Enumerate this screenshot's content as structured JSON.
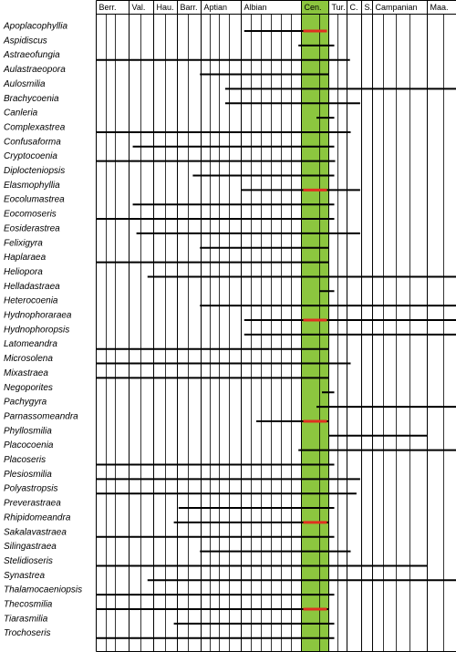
{
  "chart_data": {
    "type": "range-chart",
    "title": "",
    "xlabel": "",
    "ylabel": "",
    "stages": [
      "Berr.",
      "Val.",
      "Hau.",
      "Barr.",
      "Aptian",
      "Albian",
      "Cen.",
      "Tur.",
      "C.",
      "S.",
      "Campanian",
      "Maa."
    ],
    "highlighted_stage": "Cen.",
    "colors": {
      "highlight_band": "#8cc63f",
      "range_bar": "#000000",
      "marker": "#e03020",
      "grid": "#000000"
    },
    "taxa": [
      {
        "name": "Apoplacophyllia",
        "start": 5.05,
        "end": 6.6,
        "marker": true
      },
      {
        "name": "Aspidiscus",
        "start": 5.95,
        "end": 7.3,
        "marker": false
      },
      {
        "name": "Astraeofungia",
        "start": 0,
        "end": 8.2,
        "marker": false
      },
      {
        "name": "Aulastraeopora",
        "start": 3.95,
        "end": 7.0,
        "marker": false
      },
      {
        "name": "Aulosmilia",
        "start": 4.6,
        "end": 12.0,
        "marker": false
      },
      {
        "name": "Brachycoenia",
        "start": 4.6,
        "end": 8.9,
        "marker": false
      },
      {
        "name": "Canleria",
        "start": 6.55,
        "end": 7.3,
        "marker": false
      },
      {
        "name": "Complexastrea",
        "start": 0,
        "end": 8.25,
        "marker": false
      },
      {
        "name": "Confusaforma",
        "start": 1.15,
        "end": 7.3,
        "marker": false
      },
      {
        "name": "Cryptocoenia",
        "start": 0,
        "end": 7.35,
        "marker": false
      },
      {
        "name": "Diplocteniopsis",
        "start": 3.65,
        "end": 7.3,
        "marker": false
      },
      {
        "name": "Elasmophyllia",
        "start": 5.0,
        "end": 8.9,
        "marker": true
      },
      {
        "name": "Eocolumastrea",
        "start": 1.15,
        "end": 7.3,
        "marker": false
      },
      {
        "name": "Eocomoseris",
        "start": 0,
        "end": 7.3,
        "marker": false
      },
      {
        "name": "Eosiderastrea",
        "start": 1.3,
        "end": 8.9,
        "marker": false
      },
      {
        "name": "Felixigyra",
        "start": 3.95,
        "end": 7.0,
        "marker": false
      },
      {
        "name": "Haplaraea",
        "start": 0,
        "end": 7.0,
        "marker": false
      },
      {
        "name": "Heliopora",
        "start": 1.75,
        "end": 12.0,
        "marker": false
      },
      {
        "name": "Helladastraea",
        "start": 6.65,
        "end": 7.3,
        "marker": false
      },
      {
        "name": "Heterocoenia",
        "start": 3.95,
        "end": 12.0,
        "marker": false
      },
      {
        "name": "Hydnophoraraea",
        "start": 5.05,
        "end": 12.0,
        "marker": true
      },
      {
        "name": "Hydnophoropsis",
        "start": 5.05,
        "end": 12.0,
        "marker": false
      },
      {
        "name": "Latomeandra",
        "start": 0,
        "end": 7.0,
        "marker": false
      },
      {
        "name": "Microsolena",
        "start": 0,
        "end": 8.25,
        "marker": false
      },
      {
        "name": "Mixastraea",
        "start": 0,
        "end": 7.0,
        "marker": false
      },
      {
        "name": "Negoporites",
        "start": 6.75,
        "end": 7.3,
        "marker": false
      },
      {
        "name": "Pachygyra",
        "start": 6.55,
        "end": 12.0,
        "marker": false
      },
      {
        "name": "Parnassomeandra",
        "start": 5.25,
        "end": 7.0,
        "marker": true
      },
      {
        "name": "Phyllosmilia",
        "start": 7.0,
        "end": 11.0,
        "marker": false
      },
      {
        "name": "Placocoenia",
        "start": 5.95,
        "end": 12.0,
        "marker": false
      },
      {
        "name": "Placoseris",
        "start": 0,
        "end": 7.3,
        "marker": false
      },
      {
        "name": "Plesiosmilia",
        "start": 0,
        "end": 8.9,
        "marker": false
      },
      {
        "name": "Polyastropsis",
        "start": 0,
        "end": 8.65,
        "marker": false
      },
      {
        "name": "Preverastraea",
        "start": 3.05,
        "end": 7.3,
        "marker": false
      },
      {
        "name": "Rhipidomeandra",
        "start": 2.85,
        "end": 7.0,
        "marker": true
      },
      {
        "name": "Sakalavastraea",
        "start": 0,
        "end": 7.3,
        "marker": false
      },
      {
        "name": "Silingastraea",
        "start": 3.95,
        "end": 8.25,
        "marker": false
      },
      {
        "name": "Stelidioseris",
        "start": 0,
        "end": 11.0,
        "marker": false
      },
      {
        "name": "Synastrea",
        "start": 1.75,
        "end": 12.0,
        "marker": false
      },
      {
        "name": "Thalamocaeniopsis",
        "start": 0,
        "end": 7.3,
        "marker": false
      },
      {
        "name": "Thecosmilia",
        "start": 0,
        "end": 7.0,
        "marker": true
      },
      {
        "name": "Tiarasmilia",
        "start": 2.85,
        "end": 7.3,
        "marker": false
      },
      {
        "name": "Trochoseris",
        "start": 0,
        "end": 7.3,
        "marker": false
      }
    ]
  }
}
